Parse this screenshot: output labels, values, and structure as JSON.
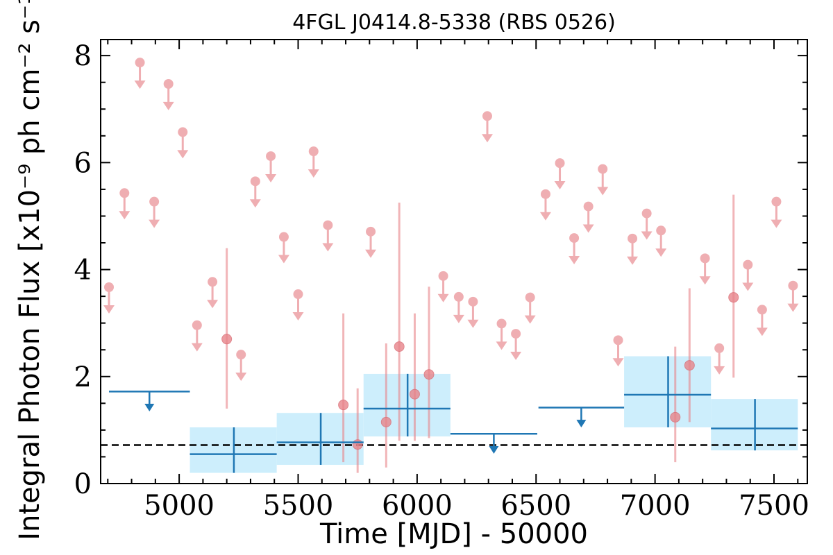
{
  "chart_data": {
    "type": "scatter",
    "title": "4FGL J0414.8-5338 (RBS 0526)",
    "xlabel": "Time [MJD] - 50000",
    "ylabel": "Integral Photon Flux [x10⁻⁹ ph cm⁻² s⁻¹]",
    "xlim": [
      4670,
      7640
    ],
    "ylim": [
      0,
      8.3
    ],
    "xticks": [
      5000,
      5500,
      6000,
      6500,
      7000,
      7500
    ],
    "yticks": [
      0,
      2,
      4,
      6,
      8
    ],
    "grid": false,
    "reference_line": {
      "y": 0.72,
      "style": "dashed"
    },
    "colors": {
      "short_bins": "#e8848a",
      "long_bins": "#1f77b4",
      "long_bins_band": "#cdeefc",
      "reference": "#000000"
    },
    "short_bins_upper_limits": [
      {
        "x": 4705,
        "y": 3.67
      },
      {
        "x": 4770,
        "y": 5.43
      },
      {
        "x": 4835,
        "y": 7.87
      },
      {
        "x": 4895,
        "y": 5.27
      },
      {
        "x": 4955,
        "y": 7.47
      },
      {
        "x": 5015,
        "y": 6.57
      },
      {
        "x": 5075,
        "y": 2.96
      },
      {
        "x": 5140,
        "y": 3.77
      },
      {
        "x": 5260,
        "y": 2.41
      },
      {
        "x": 5320,
        "y": 5.65
      },
      {
        "x": 5385,
        "y": 6.12
      },
      {
        "x": 5440,
        "y": 4.61
      },
      {
        "x": 5500,
        "y": 3.54
      },
      {
        "x": 5565,
        "y": 6.21
      },
      {
        "x": 5625,
        "y": 4.83
      },
      {
        "x": 5805,
        "y": 4.71
      },
      {
        "x": 6110,
        "y": 3.88
      },
      {
        "x": 6175,
        "y": 3.49
      },
      {
        "x": 6235,
        "y": 3.4
      },
      {
        "x": 6295,
        "y": 6.87
      },
      {
        "x": 6355,
        "y": 2.99
      },
      {
        "x": 6415,
        "y": 2.8
      },
      {
        "x": 6475,
        "y": 3.48
      },
      {
        "x": 6540,
        "y": 5.41
      },
      {
        "x": 6600,
        "y": 5.99
      },
      {
        "x": 6660,
        "y": 4.59
      },
      {
        "x": 6720,
        "y": 5.18
      },
      {
        "x": 6780,
        "y": 5.88
      },
      {
        "x": 6845,
        "y": 2.68
      },
      {
        "x": 6905,
        "y": 4.58
      },
      {
        "x": 6965,
        "y": 5.05
      },
      {
        "x": 7025,
        "y": 4.73
      },
      {
        "x": 7210,
        "y": 4.21
      },
      {
        "x": 7270,
        "y": 2.53
      },
      {
        "x": 7390,
        "y": 4.09
      },
      {
        "x": 7450,
        "y": 3.25
      },
      {
        "x": 7510,
        "y": 5.27
      },
      {
        "x": 7580,
        "y": 3.7
      }
    ],
    "short_bins_detections": [
      {
        "x": 5200,
        "y": 2.7,
        "lo": 1.4,
        "hi": 4.4
      },
      {
        "x": 5690,
        "y": 1.47,
        "lo": 0.4,
        "hi": 3.18
      },
      {
        "x": 5750,
        "y": 0.73,
        "lo": 0.2,
        "hi": 1.78
      },
      {
        "x": 5870,
        "y": 1.15,
        "lo": 0.3,
        "hi": 2.62
      },
      {
        "x": 5925,
        "y": 2.56,
        "lo": 0.8,
        "hi": 5.25
      },
      {
        "x": 5990,
        "y": 1.67,
        "lo": 0.8,
        "hi": 3.18
      },
      {
        "x": 6050,
        "y": 2.04,
        "lo": 0.85,
        "hi": 3.68
      },
      {
        "x": 7085,
        "y": 1.24,
        "lo": 0.4,
        "hi": 2.56
      },
      {
        "x": 7145,
        "y": 2.21,
        "lo": 1.15,
        "hi": 3.65
      },
      {
        "x": 7330,
        "y": 3.48,
        "lo": 1.98,
        "hi": 5.4
      }
    ],
    "long_bins_upper_limits": [
      {
        "x0": 4705,
        "x1": 5045,
        "y": 1.72
      },
      {
        "x0": 6140,
        "x1": 6505,
        "y": 0.93
      },
      {
        "x0": 6510,
        "x1": 6870,
        "y": 1.42
      }
    ],
    "long_bins_detections": [
      {
        "x0": 5045,
        "x1": 5410,
        "x": 5230,
        "y": 0.55,
        "lo": 0.2,
        "hi": 1.05
      },
      {
        "x0": 5410,
        "x1": 5775,
        "x": 5595,
        "y": 0.77,
        "lo": 0.35,
        "hi": 1.32
      },
      {
        "x0": 5775,
        "x1": 6140,
        "x": 5960,
        "y": 1.4,
        "lo": 0.88,
        "hi": 2.05
      },
      {
        "x0": 6870,
        "x1": 7235,
        "x": 7055,
        "y": 1.66,
        "lo": 1.05,
        "hi": 2.38
      },
      {
        "x0": 7235,
        "x1": 7600,
        "x": 7420,
        "y": 1.03,
        "lo": 0.62,
        "hi": 1.58
      }
    ]
  }
}
